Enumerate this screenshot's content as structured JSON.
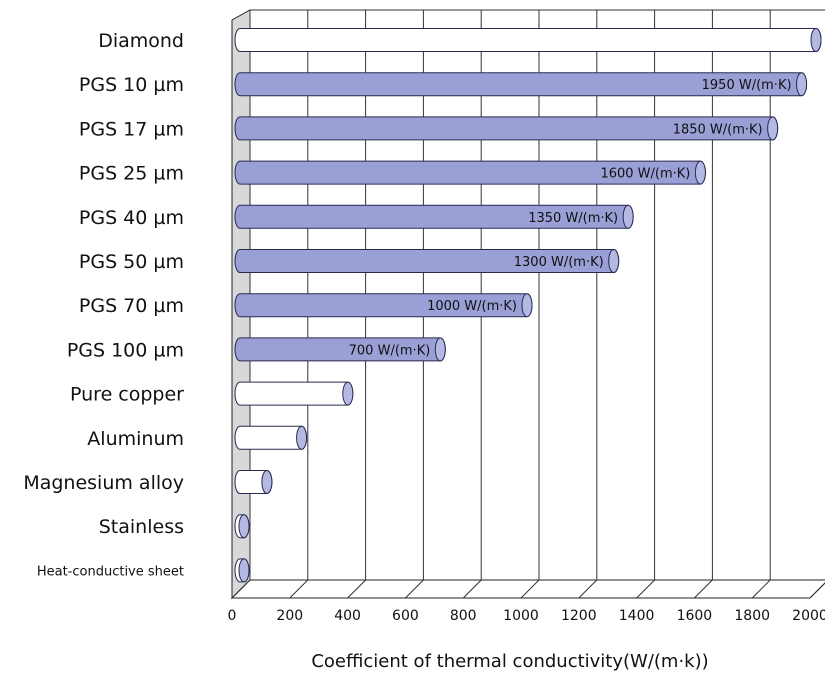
{
  "chart_data": {
    "type": "bar",
    "orientation": "horizontal",
    "categories": [
      "Diamond",
      "PGS 10 µm",
      "PGS 17 µm",
      "PGS 25 µm",
      "PGS 40 µm",
      "PGS 50 µm",
      "PGS 70 µm",
      "PGS 100 µm",
      "Pure copper",
      "Aluminum",
      "Magnesium alloy",
      "Stainless",
      "Heat-conductive sheet"
    ],
    "values": [
      2000,
      1950,
      1850,
      1600,
      1350,
      1300,
      1000,
      700,
      380,
      220,
      100,
      15,
      5
    ],
    "data_labels": [
      "",
      "1950 W/(m·K)",
      "1850 W/(m·K)",
      "1600 W/(m·K)",
      "1350 W/(m·K)",
      "1300 W/(m·K)",
      "1000 W/(m·K)",
      "700 W/(m·K)",
      "",
      "",
      "",
      "",
      ""
    ],
    "highlight": [
      false,
      true,
      true,
      true,
      true,
      true,
      true,
      true,
      false,
      false,
      false,
      false,
      false
    ],
    "xlabel": "Coefficient of thermal conductivity(W/(m·k))",
    "xticks": [
      "0",
      "200",
      "400",
      "600",
      "800",
      "1000",
      "1200",
      "1400",
      "1600",
      "1800",
      "2000"
    ],
    "xlim": [
      0,
      2000
    ],
    "grid": true,
    "colors": {
      "pgs_fill": "#9aa0d6",
      "pgs_cap": "#b4b9e4",
      "other_fill": "#ffffff",
      "other_cap": "#b4b9e4",
      "outline": "#2a2a50",
      "wall": "#d8d8d8",
      "grid": "#333333"
    }
  }
}
